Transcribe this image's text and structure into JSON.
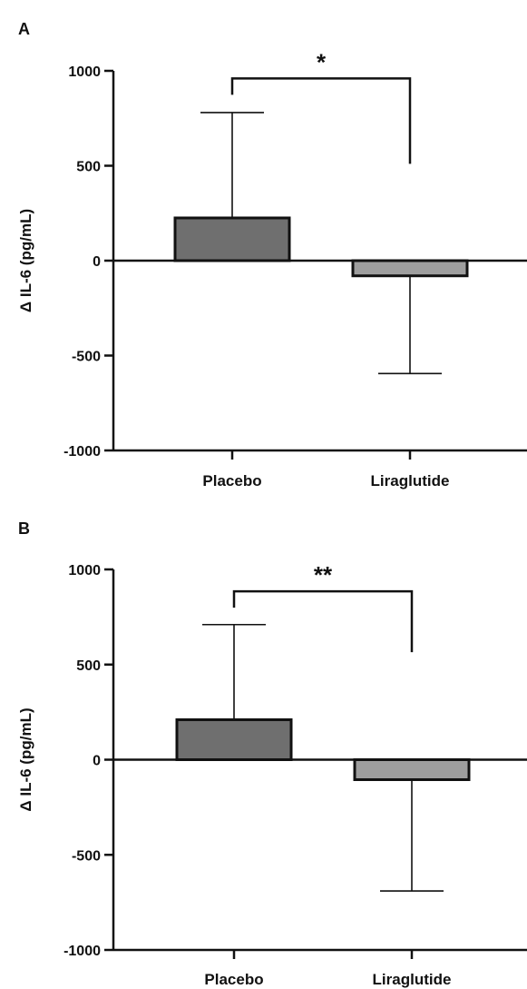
{
  "chart_data": [
    {
      "panel_label": "A",
      "type": "bar",
      "categories": [
        "Placebo",
        "Liraglutide"
      ],
      "series": [
        {
          "values": [
            225,
            -80
          ],
          "error_bars": [
            {
              "upper": 780
            },
            {
              "lower": -595
            }
          ],
          "colors": [
            "#6f6f6f",
            "#9e9e9e"
          ]
        }
      ],
      "ylabel": "Δ IL-6 (pg/mL)",
      "ylim": [
        -1000,
        1000
      ],
      "yticks": [
        1000,
        500,
        0,
        -500,
        -1000
      ],
      "ytick_labels": [
        "1000",
        "500",
        "0",
        "-500",
        "-1000"
      ],
      "grid": false,
      "significance": {
        "label": "*",
        "between": [
          "Placebo",
          "Liraglutide"
        ],
        "y": 960,
        "right_drop_to": 510
      }
    },
    {
      "panel_label": "B",
      "type": "bar",
      "categories": [
        "Placebo",
        "Liraglutide"
      ],
      "series": [
        {
          "values": [
            210,
            -105
          ],
          "error_bars": [
            {
              "upper": 710
            },
            {
              "lower": -690
            }
          ],
          "colors": [
            "#6f6f6f",
            "#9e9e9e"
          ]
        }
      ],
      "ylabel": "Δ IL-6 (pg/mL)",
      "ylim": [
        -1000,
        1000
      ],
      "yticks": [
        1000,
        500,
        0,
        -500,
        -1000
      ],
      "ytick_labels": [
        "1000",
        "500",
        "0",
        "-500",
        "-1000"
      ],
      "grid": false,
      "significance": {
        "label": "**",
        "between": [
          "Placebo",
          "Liraglutide"
        ],
        "y": 885,
        "right_drop_to": 565
      }
    }
  ]
}
